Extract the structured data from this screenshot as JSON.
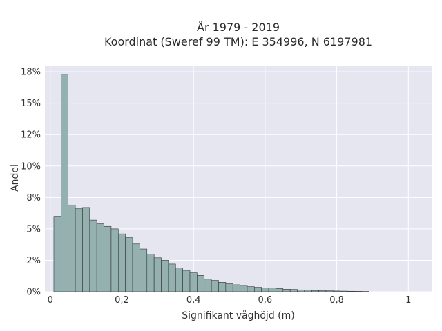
{
  "chart_data": {
    "type": "bar",
    "title": [
      "År 1979 - 2019",
      "Koordinat (Sweref 99 TM): E 354996, N 6197981"
    ],
    "xlabel": "Signifikant våghöjd (m)",
    "ylabel": "Andel",
    "bin_width": 0.02,
    "x_start": 0.01,
    "xlim": [
      -0.015,
      1.065
    ],
    "ylim": [
      0,
      0.18
    ],
    "xticks": [
      0,
      0.2,
      0.4,
      0.6,
      0.8,
      1
    ],
    "xtick_labels": [
      "0",
      "0,2",
      "0,4",
      "0,6",
      "0,8",
      "1"
    ],
    "yticks": [
      0,
      0.025,
      0.05,
      0.075,
      0.1,
      0.125,
      0.15,
      0.175
    ],
    "ytick_labels": [
      "0%",
      "2%",
      "5%",
      "8%",
      "10%",
      "12%",
      "15%",
      "18%"
    ],
    "grid": true,
    "legend": "none",
    "bar_color": "#94b1b0",
    "bar_edge": "#333333",
    "background": "#e5e6f0",
    "values": [
      0.06,
      0.173,
      0.069,
      0.066,
      0.067,
      0.057,
      0.054,
      0.052,
      0.05,
      0.046,
      0.043,
      0.038,
      0.034,
      0.03,
      0.027,
      0.025,
      0.022,
      0.019,
      0.017,
      0.015,
      0.013,
      0.01,
      0.009,
      0.0075,
      0.0065,
      0.0055,
      0.005,
      0.004,
      0.0035,
      0.003,
      0.003,
      0.0025,
      0.002,
      0.0018,
      0.0015,
      0.0012,
      0.001,
      0.0008,
      0.0007,
      0.0006,
      0.0005,
      0.0004,
      0.0003,
      0.0002
    ]
  }
}
